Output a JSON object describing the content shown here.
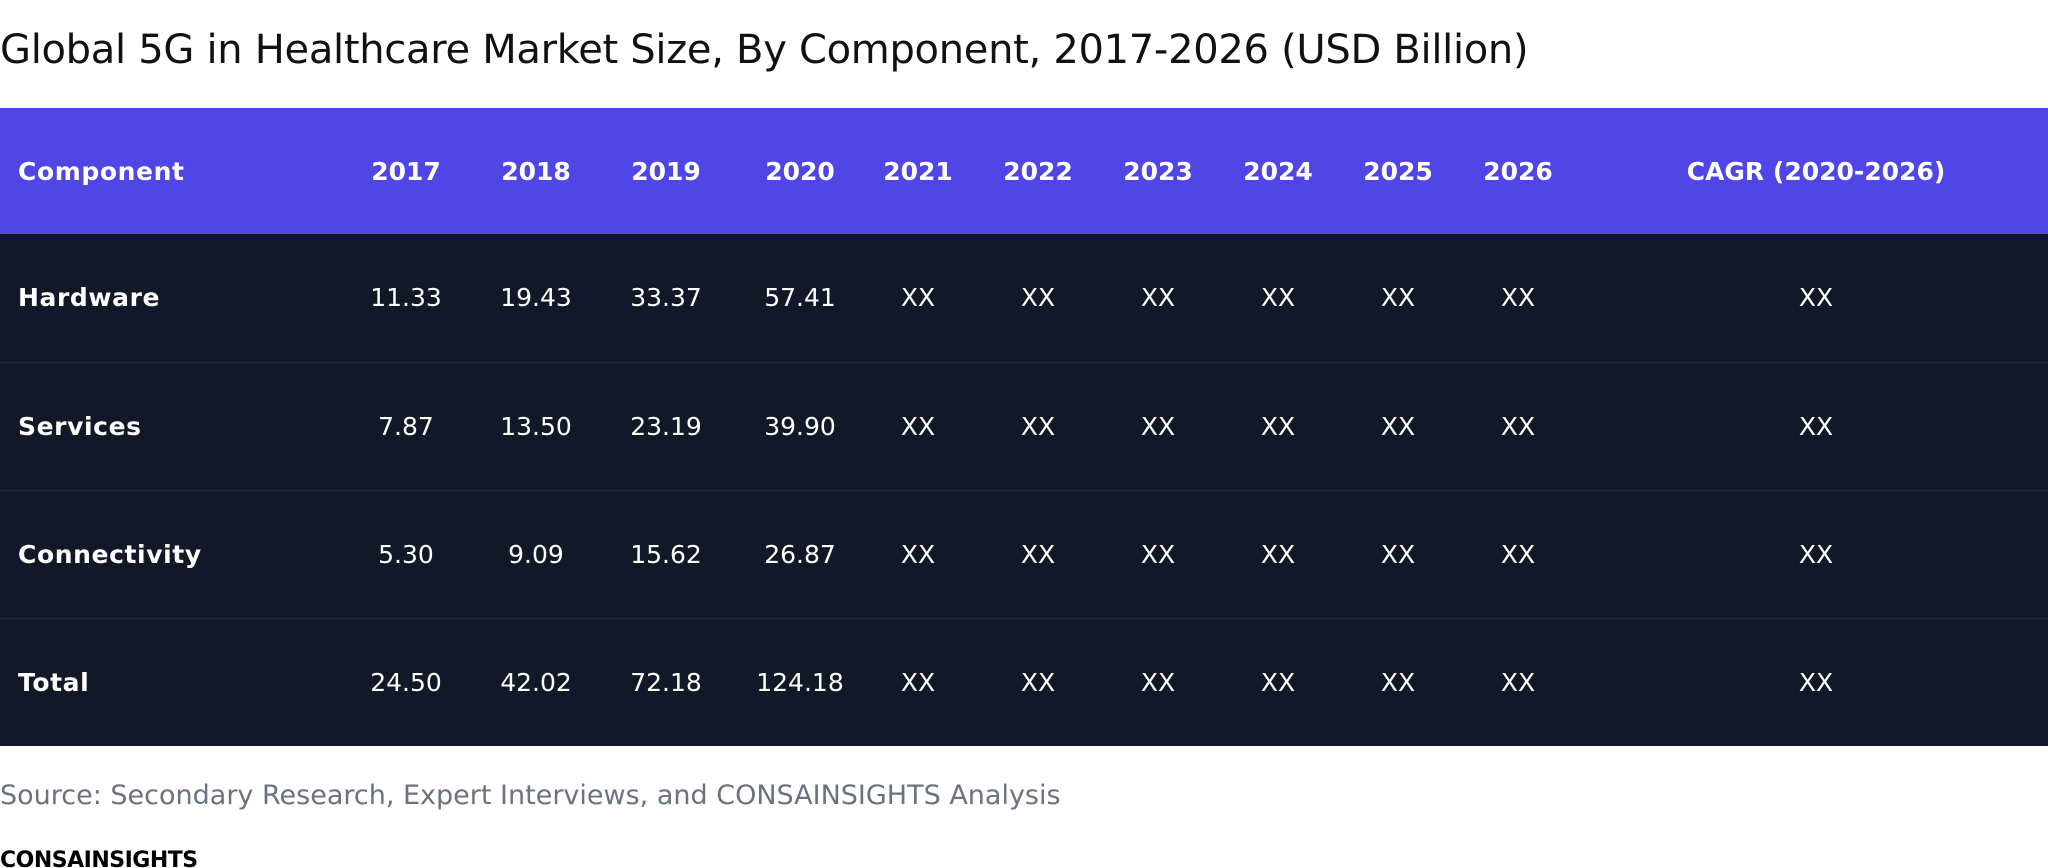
{
  "chart_data": {
    "type": "table",
    "title": "Global 5G in Healthcare Market Size, By Component, 2017-2026 (USD Billion)",
    "columns": [
      "Component",
      "2017",
      "2018",
      "2019",
      "2020",
      "2021",
      "2022",
      "2023",
      "2024",
      "2025",
      "2026",
      "CAGR (2020-2026)"
    ],
    "rows": [
      [
        "Hardware",
        "11.33",
        "19.43",
        "33.37",
        "57.41",
        "XX",
        "XX",
        "XX",
        "XX",
        "XX",
        "XX",
        "XX"
      ],
      [
        "Services",
        "7.87",
        "13.50",
        "23.19",
        "39.90",
        "XX",
        "XX",
        "XX",
        "XX",
        "XX",
        "XX",
        "XX"
      ],
      [
        "Connectivity",
        "5.30",
        "9.09",
        "15.62",
        "26.87",
        "XX",
        "XX",
        "XX",
        "XX",
        "XX",
        "XX",
        "XX"
      ],
      [
        "Total",
        "24.50",
        "42.02",
        "72.18",
        "124.18",
        "XX",
        "XX",
        "XX",
        "XX",
        "XX",
        "XX",
        "XX"
      ]
    ],
    "source": "Source: Secondary Research, Expert Interviews, and CONSAINSIGHTS Analysis"
  },
  "brand": "CONSAINSIGHTS",
  "colors": {
    "header_bg": "#5046e5",
    "row_bg": "#121827",
    "row_divider": "#1f2937",
    "source_text": "#6b7280"
  }
}
